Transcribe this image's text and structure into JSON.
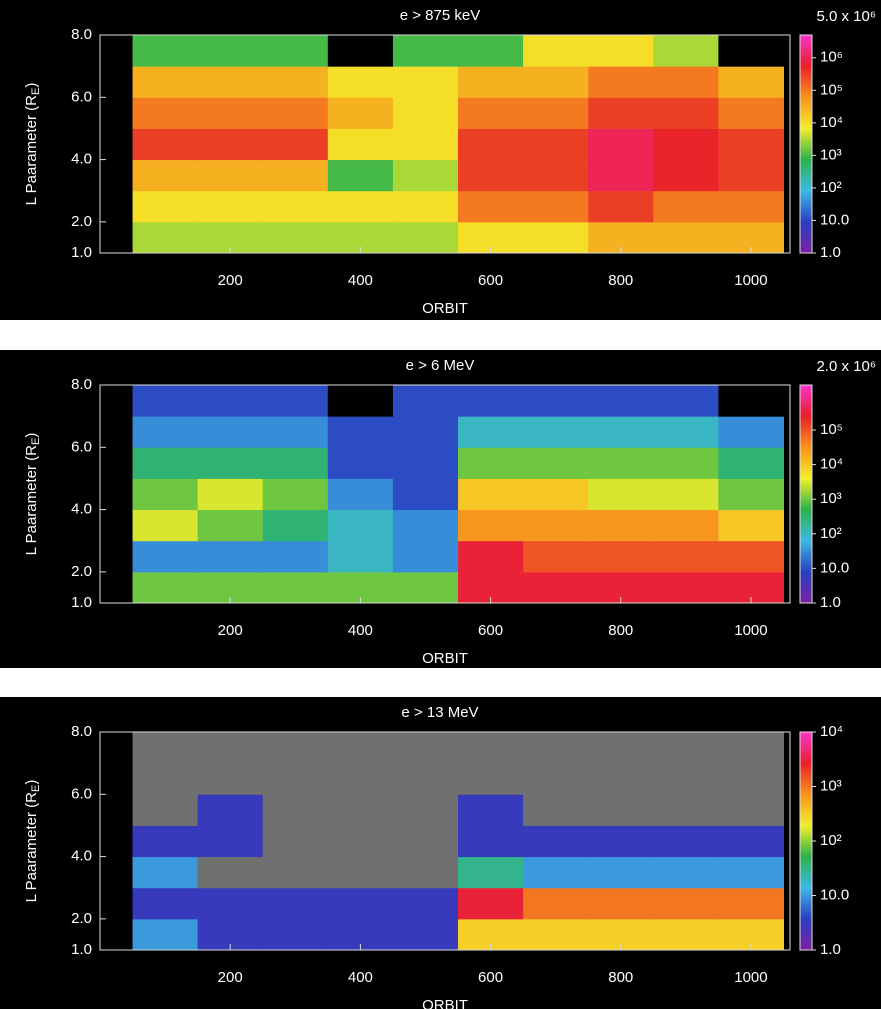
{
  "chart_data": [
    {
      "type": "heatmap",
      "title": "e > 875 keV",
      "xlabel": "ORBIT",
      "ylabel": [
        "L Paarameter (R",
        "E",
        ")"
      ],
      "xlim": [
        0,
        1060
      ],
      "xticks": [
        200,
        400,
        600,
        800,
        1000
      ],
      "ylim": [
        1,
        8
      ],
      "yticks": [
        {
          "value": 1,
          "label": "1.0"
        },
        {
          "value": 2,
          "label": "2.0"
        },
        {
          "value": 4,
          "label": "4.0"
        },
        {
          "value": 6,
          "label": "6.0"
        },
        {
          "value": 8,
          "label": "8.0"
        }
      ],
      "x_edges": [
        50,
        150,
        250,
        350,
        450,
        550,
        650,
        750,
        850,
        950,
        1050
      ],
      "y_edges": [
        1,
        2,
        3,
        4,
        5,
        6,
        7,
        8
      ],
      "z": [
        [
          3000,
          3000,
          3000,
          3000,
          3000,
          10000,
          10000,
          30000,
          30000,
          30000
        ],
        [
          10000,
          10000,
          10000,
          10000,
          10000,
          100000,
          100000,
          300000,
          100000,
          100000
        ],
        [
          30000,
          30000,
          30000,
          1000,
          3000,
          300000,
          300000,
          1000000,
          500000,
          300000
        ],
        [
          300000,
          300000,
          300000,
          10000,
          10000,
          300000,
          300000,
          1000000,
          500000,
          300000
        ],
        [
          100000,
          100000,
          100000,
          30000,
          10000,
          100000,
          100000,
          300000,
          300000,
          100000
        ],
        [
          30000,
          30000,
          30000,
          10000,
          10000,
          30000,
          30000,
          100000,
          100000,
          30000
        ],
        [
          1000,
          1000,
          1000,
          null,
          1000,
          1000,
          10000,
          10000,
          3000,
          null
        ]
      ],
      "zlog": true,
      "zlim": [
        1,
        5000000
      ],
      "zmax_label": "5.0 x 10⁶",
      "zticks": [
        {
          "value": 1,
          "label": "1.0"
        },
        {
          "value": 10,
          "label": "10.0"
        },
        {
          "value": 100,
          "label": "10²"
        },
        {
          "value": 1000,
          "label": "10³"
        },
        {
          "value": 10000,
          "label": "10⁴"
        },
        {
          "value": 100000,
          "label": "10⁵"
        },
        {
          "value": 1000000,
          "label": "10⁶"
        }
      ],
      "colorscale": [
        "#7b1fa2",
        "#2a3fbf",
        "#3fb8e6",
        "#2bb24c",
        "#f4ee2a",
        "#f7941d",
        "#e8202a",
        "#ff33cc"
      ],
      "null_color": "#000000"
    },
    {
      "type": "heatmap",
      "title": "e > 6 MeV",
      "xlabel": "ORBIT",
      "ylabel": [
        "L Paarameter (R",
        "E",
        ")"
      ],
      "xlim": [
        0,
        1060
      ],
      "xticks": [
        200,
        400,
        600,
        800,
        1000
      ],
      "ylim": [
        1,
        8
      ],
      "yticks": [
        {
          "value": 1,
          "label": "1.0"
        },
        {
          "value": 2,
          "label": "2.0"
        },
        {
          "value": 4,
          "label": "4.0"
        },
        {
          "value": 6,
          "label": "6.0"
        },
        {
          "value": 8,
          "label": "8.0"
        }
      ],
      "x_edges": [
        50,
        150,
        250,
        350,
        450,
        550,
        650,
        750,
        850,
        950,
        1050
      ],
      "y_edges": [
        1,
        2,
        3,
        4,
        5,
        6,
        7,
        8
      ],
      "z": [
        [
          1000,
          1000,
          1000,
          1000,
          1000,
          300000,
          300000,
          300000,
          300000,
          300000
        ],
        [
          30,
          30,
          30,
          100,
          30,
          300000,
          100000,
          100000,
          100000,
          100000
        ],
        [
          3000,
          1000,
          300,
          100,
          30,
          30000,
          30000,
          30000,
          30000,
          10000
        ],
        [
          1000,
          3000,
          1000,
          30,
          10,
          10000,
          10000,
          3000,
          3000,
          1000
        ],
        [
          300,
          300,
          300,
          10,
          10,
          1000,
          1000,
          1000,
          1000,
          300
        ],
        [
          30,
          30,
          30,
          10,
          10,
          100,
          100,
          100,
          100,
          30
        ],
        [
          10,
          10,
          10,
          null,
          10,
          10,
          10,
          10,
          10,
          null
        ]
      ],
      "zlog": true,
      "zlim": [
        1,
        2000000
      ],
      "zmax_label": "2.0 x 10⁶",
      "zticks": [
        {
          "value": 1,
          "label": "1.0"
        },
        {
          "value": 10,
          "label": "10.0"
        },
        {
          "value": 100,
          "label": "10²"
        },
        {
          "value": 1000,
          "label": "10³"
        },
        {
          "value": 10000,
          "label": "10⁴"
        },
        {
          "value": 100000,
          "label": "10⁵"
        }
      ],
      "colorscale": [
        "#7b1fa2",
        "#2a3fbf",
        "#3fb8e6",
        "#2bb24c",
        "#f4ee2a",
        "#f7941d",
        "#e8202a",
        "#ff33cc"
      ],
      "null_color": "#000000"
    },
    {
      "type": "heatmap",
      "title": "e > 13 MeV",
      "xlabel": "ORBIT",
      "ylabel": [
        "L Paarameter (R",
        "E",
        ")"
      ],
      "xlim": [
        0,
        1060
      ],
      "xticks": [
        200,
        400,
        600,
        800,
        1000
      ],
      "ylim": [
        1,
        8
      ],
      "yticks": [
        {
          "value": 1,
          "label": "1.0"
        },
        {
          "value": 2,
          "label": "2.0"
        },
        {
          "value": 4,
          "label": "4.0"
        },
        {
          "value": 6,
          "label": "6.0"
        },
        {
          "value": 8,
          "label": "8.0"
        }
      ],
      "x_edges": [
        50,
        150,
        250,
        350,
        450,
        550,
        650,
        750,
        850,
        950,
        1050
      ],
      "y_edges": [
        1,
        2,
        3,
        4,
        5,
        6,
        7,
        8
      ],
      "z": [
        [
          10,
          3,
          3,
          3,
          3,
          300,
          300,
          300,
          300,
          300
        ],
        [
          3,
          3,
          3,
          3,
          3,
          3000,
          1000,
          1000,
          1000,
          1000
        ],
        [
          10,
          null,
          null,
          null,
          null,
          30,
          10,
          10,
          10,
          10
        ],
        [
          3,
          3,
          null,
          null,
          null,
          3,
          3,
          3,
          3,
          3
        ],
        [
          null,
          3,
          null,
          null,
          null,
          3,
          null,
          null,
          null,
          null
        ],
        [
          null,
          null,
          null,
          null,
          null,
          null,
          null,
          null,
          null,
          null
        ],
        [
          null,
          null,
          null,
          null,
          null,
          null,
          null,
          null,
          null,
          null
        ]
      ],
      "zlog": true,
      "zlim": [
        1,
        10000
      ],
      "zticks": [
        {
          "value": 1,
          "label": "1.0"
        },
        {
          "value": 10,
          "label": "10.0"
        },
        {
          "value": 100,
          "label": "10²"
        },
        {
          "value": 1000,
          "label": "10³"
        },
        {
          "value": 10000,
          "label": "10⁴"
        }
      ],
      "colorscale": [
        "#7b1fa2",
        "#2a3fbf",
        "#3fb8e6",
        "#2bb24c",
        "#f4ee2a",
        "#f7941d",
        "#e8202a",
        "#ff33cc"
      ],
      "null_color": "#707070"
    }
  ]
}
